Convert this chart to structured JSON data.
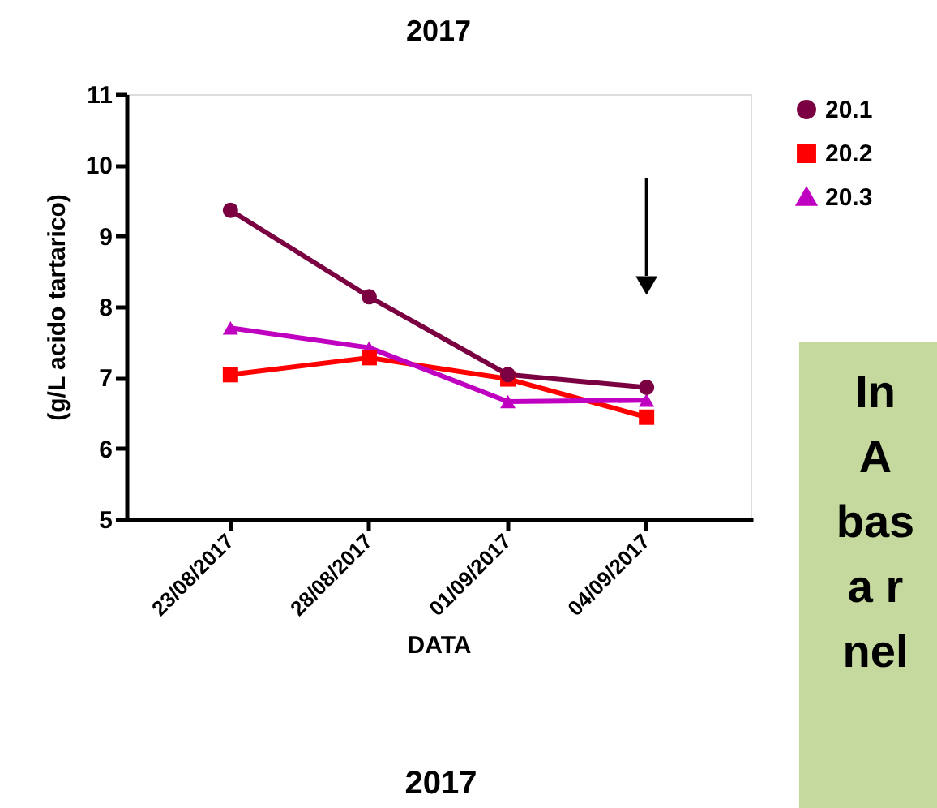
{
  "chart_data": {
    "type": "line",
    "title": "2017",
    "xlabel": "DATA",
    "ylabel": "(g/L acido tartarico)",
    "categories": [
      "23/08/2017",
      "28/08/2017",
      "01/09/2017",
      "04/09/2017"
    ],
    "series": [
      {
        "name": "20.1",
        "color": "#7b0041",
        "marker": "circle",
        "values": [
          9.36,
          8.14,
          7.04,
          6.86
        ]
      },
      {
        "name": "20.2",
        "color": "#ff0000",
        "marker": "square",
        "values": [
          7.04,
          7.28,
          6.98,
          6.44
        ]
      },
      {
        "name": "20.3",
        "color": "#c000c0",
        "marker": "triangle",
        "values": [
          7.7,
          7.42,
          6.66,
          6.68
        ]
      }
    ],
    "ylim": [
      5,
      11
    ],
    "yticks": [
      5,
      6,
      7,
      8,
      9,
      10,
      11
    ],
    "grid": false,
    "legend": "top right",
    "line_style": "solid",
    "annotations": [
      "2017",
      "In\nA\nbas\na r\nnel"
    ]
  }
}
